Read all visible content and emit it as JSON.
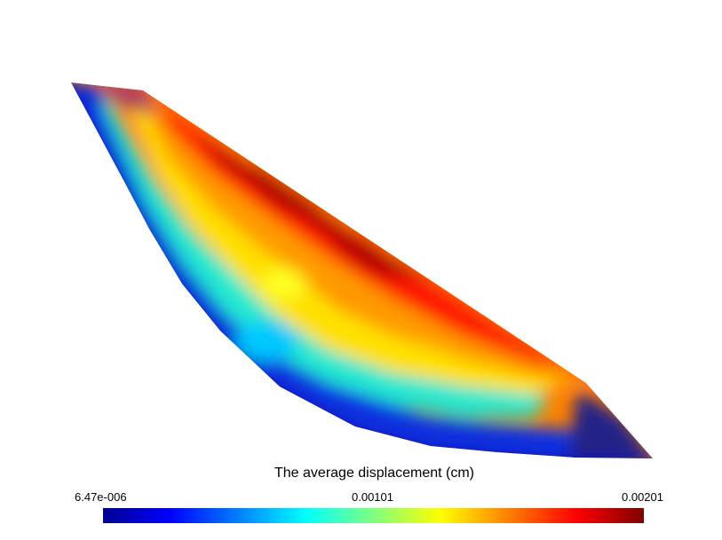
{
  "chart_data": {
    "type": "heatmap",
    "title": "The average displacement (cm)",
    "colormap": "jet",
    "colorbar": {
      "min_label": "6.47e-006",
      "mid_label": "0.00101",
      "max_label": "0.00201",
      "min": 6.47e-06,
      "mid": 0.00101,
      "max": 0.00201
    },
    "colors": [
      "#00008f",
      "#0000ff",
      "#00ffff",
      "#ffff00",
      "#ff0000",
      "#800000"
    ]
  }
}
